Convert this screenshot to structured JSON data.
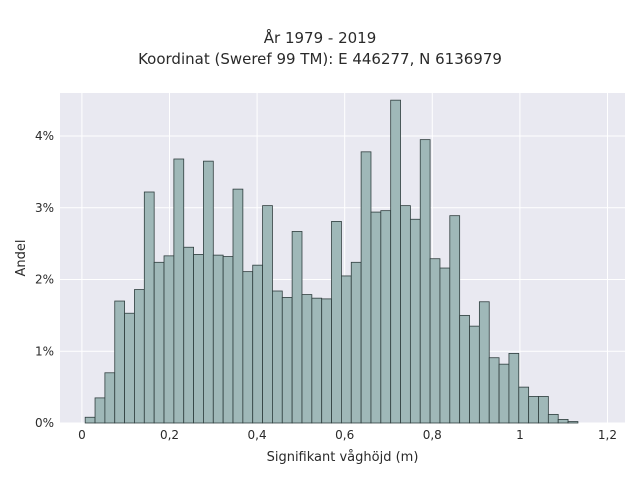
{
  "chart_data": {
    "type": "bar",
    "title_lines": [
      "År 1979 - 2019",
      "Koordinat (Sweref 99 TM): E 446277, N 6136979"
    ],
    "xlabel": "Signifikant våghöjd (m)",
    "ylabel": "Andel",
    "xlim": [
      -0.05,
      1.24
    ],
    "ylim": [
      0,
      4.6
    ],
    "x_ticks": [
      0,
      0.2,
      0.4,
      0.6,
      0.8,
      1.0,
      1.2
    ],
    "x_tick_labels": [
      "0",
      "0,2",
      "0,4",
      "0,6",
      "0,8",
      "1",
      "1,2"
    ],
    "y_ticks": [
      0,
      1,
      2,
      3,
      4
    ],
    "y_tick_labels": [
      "0%",
      "1%",
      "2%",
      "3%",
      "4%"
    ],
    "grid": true,
    "bin_width": 0.0225,
    "bin_start": 0.0075,
    "values": [
      0.08,
      0.35,
      0.7,
      1.7,
      1.53,
      1.86,
      3.22,
      2.24,
      2.33,
      3.68,
      2.45,
      2.35,
      3.65,
      2.34,
      2.32,
      3.26,
      2.11,
      2.2,
      3.03,
      1.84,
      1.75,
      2.67,
      1.79,
      1.74,
      1.73,
      2.81,
      2.05,
      2.24,
      3.78,
      2.94,
      2.96,
      4.5,
      3.03,
      2.84,
      3.95,
      2.29,
      2.16,
      2.89,
      1.5,
      1.35,
      1.69,
      0.91,
      0.82,
      0.97,
      0.5,
      0.37,
      0.37,
      0.12,
      0.05,
      0.02
    ],
    "colors": {
      "bar_fill": "#9fb8b8",
      "bar_stroke": "#2f3e3e",
      "plot_bg": "#e9e9f1",
      "grid": "#ffffff"
    }
  }
}
